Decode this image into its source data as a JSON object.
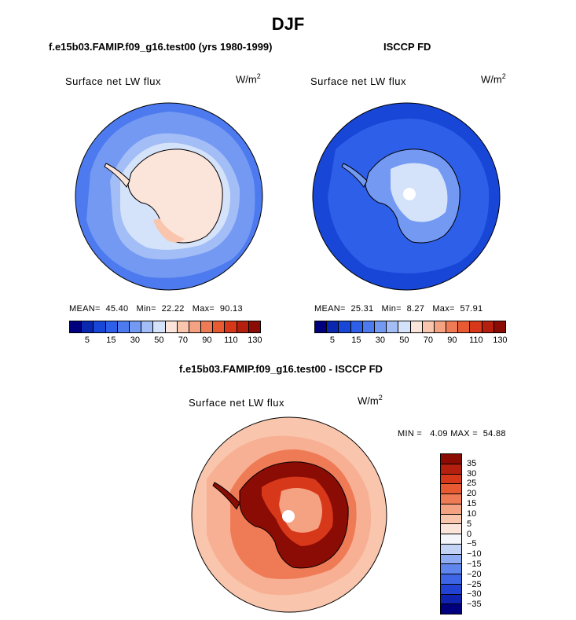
{
  "page": {
    "season_title": "DJF"
  },
  "panels": {
    "model": {
      "title": "f.e15b03.FAMIP.f09_g16.test00 (yrs 1980-1999)",
      "field": "Surface net LW flux",
      "unit_base": "W/m",
      "unit_exp": "2",
      "mean_label": "MEAN=",
      "mean": "45.40",
      "min_label": "Min=",
      "min": "22.22",
      "max_label": "Max=",
      "max": "90.13"
    },
    "obs": {
      "title": "ISCCP FD",
      "field": "Surface net LW flux",
      "unit_base": "W/m",
      "unit_exp": "2",
      "mean_label": "MEAN=",
      "mean": "25.31",
      "min_label": "Min=",
      "min": "8.27",
      "max_label": "Max=",
      "max": "57.91"
    },
    "diff": {
      "title": "f.e15b03.FAMIP.f09_g16.test00 - ISCCP FD",
      "field": "Surface net LW flux",
      "unit_base": "W/m",
      "unit_exp": "2",
      "min_label": "MIN =",
      "min": "4.09",
      "max_label": "MAX =",
      "max": "54.88"
    }
  },
  "colorbar_abs": {
    "colors": [
      "#00007e",
      "#0a27b0",
      "#1846d6",
      "#2e5fe8",
      "#4d7bef",
      "#7399f3",
      "#a3bdf6",
      "#d4e2fa",
      "#fbe4d9",
      "#f9c5ad",
      "#f5a283",
      "#ef7b56",
      "#e85a31",
      "#d8381a",
      "#b51f0d",
      "#8b0c05"
    ],
    "tick_labels": [
      "5",
      "15",
      "30",
      "50",
      "70",
      "90",
      "110",
      "130"
    ],
    "tick_boundaries": [
      1,
      3,
      5,
      7,
      9,
      11,
      13,
      15
    ]
  },
  "colorbar_diff": {
    "colors": [
      "#8b0c05",
      "#b51f0d",
      "#d8381a",
      "#e85a31",
      "#ef7b56",
      "#f5a283",
      "#f9c5ad",
      "#fbe4d9",
      "#f3f5fb",
      "#c3d3f6",
      "#8eabf3",
      "#5f86ee",
      "#3e65e6",
      "#2242d3",
      "#0f23b0",
      "#00007e"
    ],
    "tick_labels": [
      "35",
      "30",
      "25",
      "20",
      "15",
      "10",
      "5",
      "0",
      "−5",
      "−10",
      "−15",
      "−20",
      "−25",
      "−30",
      "−35"
    ]
  },
  "map_colors": {
    "model_ocean_far": "#4d7bef",
    "model_ocean_mid": "#7399f3",
    "model_ocean_near": "#a3bdf6",
    "model_ice_edge": "#d4e2fa",
    "model_land": "#fbe4d9",
    "model_land_warm": "#f9c5ad",
    "obs_ocean_far": "#1846d6",
    "obs_ocean_mid": "#2e5fe8",
    "obs_land": "#7399f3",
    "obs_plateau": "#d4e2fa",
    "diff_ocean": "#f9c5ad",
    "diff_ocean_warm": "#f5a283",
    "diff_coast": "#ef7b56",
    "diff_land_edge": "#8b0c05",
    "diff_land_mid": "#d8381a",
    "diff_plateau": "#f5a283"
  }
}
